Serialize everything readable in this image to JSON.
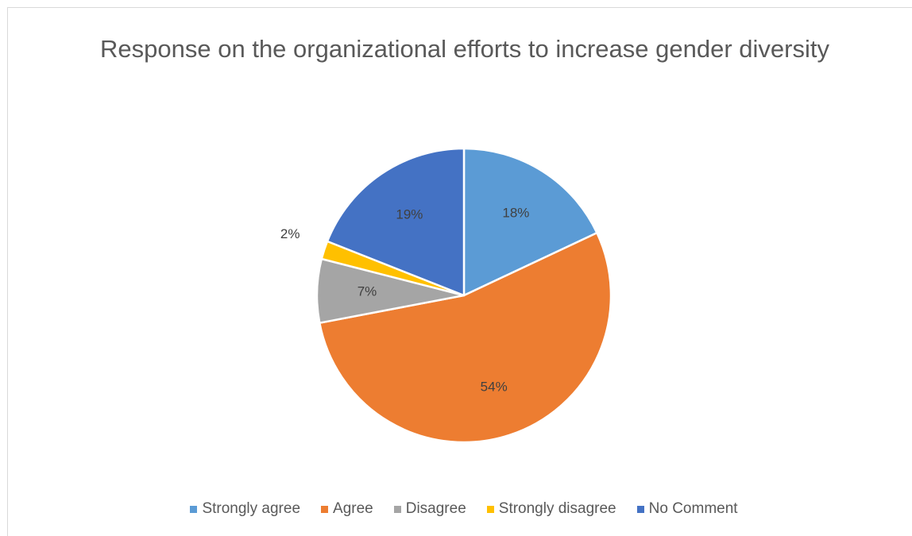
{
  "chart_data": {
    "type": "pie",
    "title": "Response on the organizational efforts to increase gender diversity",
    "categories": [
      "Strongly agree",
      "Agree",
      "Disagree",
      "Strongly disagree",
      "No Comment"
    ],
    "values": [
      18,
      54,
      7,
      2,
      19
    ],
    "labels": [
      "18%",
      "54%",
      "7%",
      "2%",
      "19%"
    ],
    "colors": [
      "#5B9BD5",
      "#ED7D31",
      "#A5A5A5",
      "#FFC000",
      "#4472C4"
    ],
    "legend_position": "bottom",
    "start_angle": "12 o'clock, clockwise"
  }
}
